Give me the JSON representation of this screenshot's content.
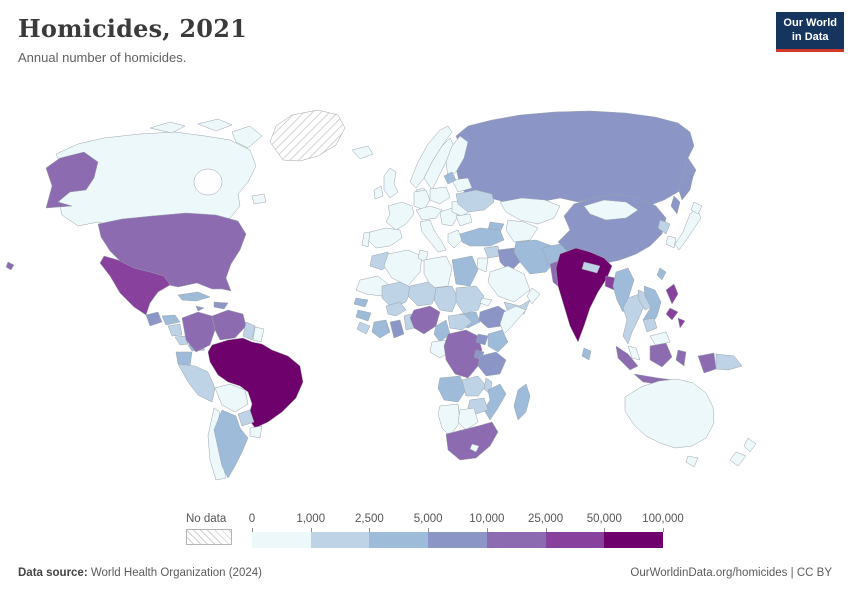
{
  "header": {
    "title": "Homicides, 2021",
    "subtitle": "Annual number of homicides."
  },
  "logo": {
    "line1": "Our World",
    "line2": "in Data",
    "bg_color": "#16355e",
    "accent_color": "#d0382c"
  },
  "footer": {
    "source_label": "Data source:",
    "source_value": "World Health Organization (2024)",
    "url": "OurWorldinData.org/homicides",
    "separator": "|",
    "license": "CC BY"
  },
  "chart_data": {
    "type": "heatmap",
    "subtype": "choropleth_world_map",
    "title": "Homicides, 2021",
    "subtitle": "Annual number of homicides.",
    "year": "2021",
    "legend": {
      "no_data_label": "No data",
      "tick_labels": [
        "0",
        "1,000",
        "2,500",
        "5,000",
        "10,000",
        "25,000",
        "50,000",
        "100,000"
      ],
      "bin_ranges": [
        "0–1,000",
        "1,000–2,500",
        "2,500–5,000",
        "5,000–10,000",
        "10,000–25,000",
        "25,000–50,000",
        "50,000–100,000"
      ],
      "bin_colors": [
        "#edf8fb",
        "#bfd3e6",
        "#9ebcda",
        "#8c96c6",
        "#8c6bb1",
        "#88419d",
        "#6e016b"
      ],
      "position": "bottom"
    },
    "countries": {
      "greenland": null,
      "canada": 0,
      "united-states": 4,
      "mexico": 5,
      "guatemala": 3,
      "honduras": 2,
      "nicaragua": 1,
      "costa-rica": 1,
      "panama": 2,
      "cuba": 2,
      "jamaica": 3,
      "dominican-republic": 3,
      "colombia": 4,
      "venezuela": 4,
      "guyana": 1,
      "suriname": 0,
      "ecuador": 2,
      "peru": 1,
      "brazil": 6,
      "bolivia": 0,
      "paraguay": 1,
      "uruguay": 0,
      "argentina": 2,
      "chile": 0,
      "iceland": 0,
      "united-kingdom": 0,
      "ireland": 0,
      "norway": 0,
      "sweden": 0,
      "finland": 0,
      "denmark": 0,
      "france": 0,
      "spain": 0,
      "portugal": 0,
      "germany": 0,
      "poland": 0,
      "austria": 0,
      "italy": 0,
      "serbia": 0,
      "greece": 0,
      "romania": 0,
      "bulgaria": 0,
      "belarus": 0,
      "lithuania": 2,
      "ukraine": 1,
      "russia": 3,
      "kazakhstan": 0,
      "uzbekistan": 0,
      "azerbaijan": 2,
      "turkey": 2,
      "syria": 1,
      "jordan": 0,
      "iraq": 3,
      "iran": 2,
      "saudi-arabia": 0,
      "yemen": 1,
      "oman": 0,
      "afghanistan": 2,
      "pakistan": 4,
      "india": 6,
      "nepal": 1,
      "bangladesh": 5,
      "sri-lanka": 2,
      "myanmar": 2,
      "thailand": 1,
      "laos": 1,
      "vietnam": 2,
      "cambodia": 1,
      "malaysia": 0,
      "china": 3,
      "mongolia": 0,
      "north-korea": 1,
      "south-korea": 0,
      "japan": 0,
      "taiwan": 2,
      "philippines": 5,
      "indonesia": 4,
      "papua-new-guinea": 1,
      "australia": 0,
      "new-zealand": 0,
      "morocco": 1,
      "algeria": 0,
      "tunisia": 0,
      "libya": 0,
      "egypt": 2,
      "mauritania": 0,
      "mali": 1,
      "niger": 1,
      "chad": 1,
      "sudan": 1,
      "south-sudan": 2,
      "eritrea": 0,
      "ethiopia": 3,
      "somalia": 0,
      "senegal": 2,
      "guinea": 2,
      "sierra-leone": 1,
      "ivory-coast": 2,
      "ghana": 3,
      "burkina-faso": 1,
      "benin": 1,
      "nigeria": 4,
      "cameroon": 2,
      "central-african-republic": 1,
      "republic-of-congo": 0,
      "democratic-republic-of-congo": 4,
      "uganda": 3,
      "kenya": 2,
      "rwanda": 3,
      "tanzania": 3,
      "angola": 2,
      "zambia": 1,
      "malawi": 1,
      "mozambique": 2,
      "zimbabwe": 1,
      "namibia": 0,
      "botswana": 0,
      "madagascar": 2,
      "south-africa": 4,
      "lesotho": 0
    }
  }
}
